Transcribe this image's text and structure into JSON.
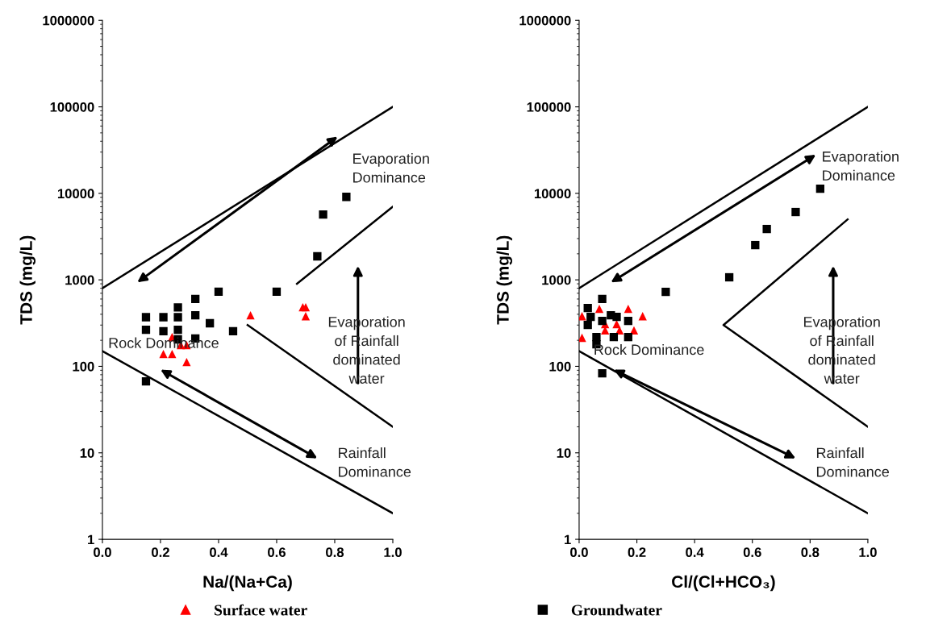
{
  "chart_data": [
    {
      "type": "scatter",
      "xlabel": "Na/(Na+Ca)",
      "ylabel": "TDS (mg/L)",
      "log": "y",
      "xlim": [
        0,
        1
      ],
      "xticks": [
        {
          "value": 0,
          "label": "0.0"
        },
        {
          "value": 0.2,
          "label": "0.2"
        },
        {
          "value": 0.4,
          "label": "0.4"
        },
        {
          "value": 0.6,
          "label": "0.6"
        },
        {
          "value": 0.8,
          "label": "0.8"
        },
        {
          "value": 1,
          "label": "1.0"
        }
      ],
      "ylim": [
        1,
        1000000
      ],
      "yticks": [
        1,
        10,
        100,
        1000,
        10000,
        100000,
        1000000
      ],
      "grid": false,
      "legend": "bottom",
      "annotations": [
        "Evaporation\nDominance",
        "Rock Dominance",
        "Evaporation\nof Rainfall\ndominated\nwater",
        "Rainfall\nDominance"
      ],
      "series": [
        {
          "name": "Surface water",
          "marker": "triangle",
          "color": "#ff0000",
          "x": [
            0.24,
            0.27,
            0.29,
            0.21,
            0.24,
            0.29,
            0.51,
            0.69,
            0.7,
            0.7
          ],
          "values": [
            218,
            176,
            176,
            139,
            139,
            112,
            390,
            483,
            483,
            380
          ]
        },
        {
          "name": "Groundwater",
          "marker": "square",
          "color": "#000000",
          "x": [
            0.15,
            0.21,
            0.15,
            0.21,
            0.26,
            0.26,
            0.26,
            0.26,
            0.32,
            0.32,
            0.32,
            0.4,
            0.37,
            0.45,
            0.6,
            0.76,
            0.74,
            0.84,
            0.15
          ],
          "values": [
            370,
            370,
            265,
            255,
            480,
            370,
            265,
            205,
            600,
            390,
            210,
            730,
            315,
            255,
            730,
            5700,
            1870,
            9100,
            67
          ]
        },
        {
          "type": "line",
          "color": "#000000",
          "x": [
            0,
            1
          ],
          "values": [
            800,
            100000
          ]
        },
        {
          "type": "line",
          "color": "#000000",
          "x": [
            0,
            1
          ],
          "values": [
            150,
            2
          ]
        },
        {
          "type": "line",
          "color": "#000000",
          "x": [
            0.5,
            1
          ],
          "values": [
            300,
            20
          ]
        },
        {
          "type": "line",
          "color": "#000000",
          "x": [
            0.67,
            1
          ],
          "values": [
            900,
            7000
          ]
        }
      ]
    },
    {
      "type": "scatter",
      "xlabel": "Cl/(Cl+HCO₃)",
      "ylabel": "TDS (mg/L)",
      "log": "y",
      "xlim": [
        0,
        1
      ],
      "xticks": [
        {
          "value": 0,
          "label": "0.0"
        },
        {
          "value": 0.2,
          "label": "0.2"
        },
        {
          "value": 0.4,
          "label": "0.4"
        },
        {
          "value": 0.6,
          "label": "0.6"
        },
        {
          "value": 0.8,
          "label": "0.8"
        },
        {
          "value": 1,
          "label": "1.0"
        }
      ],
      "ylim": [
        1,
        1000000
      ],
      "yticks": [
        1,
        10,
        100,
        1000,
        10000,
        100000,
        1000000
      ],
      "grid": false,
      "annotations": [
        "Evaporation\nDominance",
        "Rock Dominance",
        "Evaporation\nof Rainfall\ndominated\nwater",
        "Rainfall\nDominance"
      ],
      "series": [
        {
          "marker": "triangle",
          "color": "#ff0000",
          "x": [
            0.01,
            0.07,
            0.17,
            0.22,
            0.09,
            0.13,
            0.09,
            0.14,
            0.19,
            0.01
          ],
          "values": [
            380,
            463,
            463,
            380,
            308,
            308,
            260,
            260,
            260,
            214
          ]
        },
        {
          "marker": "square",
          "color": "#000000",
          "x": [
            0.04,
            0.03,
            0.08,
            0.13,
            0.11,
            0.08,
            0.03,
            0.17,
            0.06,
            0.06,
            0.12,
            0.17,
            0.08,
            0.3,
            0.52,
            0.61,
            0.65,
            0.75,
            0.835
          ],
          "values": [
            373,
            473,
            600,
            373,
            390,
            335,
            301,
            335,
            218,
            180,
            218,
            218,
            83,
            726,
            1070,
            2520,
            3870,
            6080,
            11300
          ]
        },
        {
          "type": "line",
          "color": "#000000",
          "x": [
            0,
            1
          ],
          "values": [
            800,
            100000
          ]
        },
        {
          "type": "line",
          "color": "#000000",
          "x": [
            0,
            1
          ],
          "values": [
            150,
            2
          ]
        },
        {
          "type": "line",
          "color": "#000000",
          "x": [
            0.93,
            0.5,
            1
          ],
          "values": [
            5000,
            300,
            20
          ]
        }
      ]
    }
  ]
}
